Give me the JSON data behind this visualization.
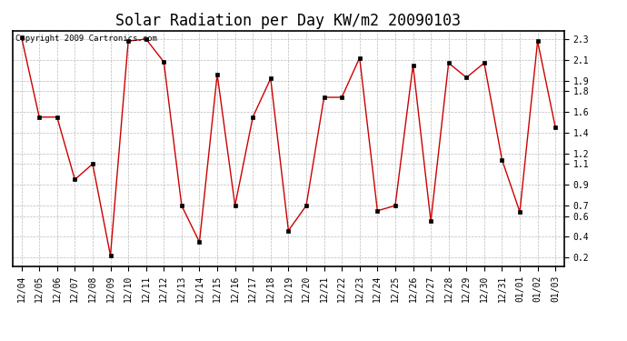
{
  "title": "Solar Radiation per Day KW/m2 20090103",
  "copyright_text": "Copyright 2009 Cartronics.com",
  "x_labels": [
    "12/04",
    "12/05",
    "12/06",
    "12/07",
    "12/08",
    "12/09",
    "12/10",
    "12/11",
    "12/12",
    "12/13",
    "12/14",
    "12/15",
    "12/16",
    "12/17",
    "12/18",
    "12/19",
    "12/20",
    "12/21",
    "12/22",
    "12/23",
    "12/24",
    "12/25",
    "12/26",
    "12/27",
    "12/28",
    "12/29",
    "12/30",
    "12/31",
    "01/01",
    "01/02",
    "01/03"
  ],
  "y_values": [
    2.32,
    1.55,
    1.55,
    0.95,
    1.1,
    0.22,
    2.28,
    2.3,
    2.08,
    0.7,
    0.35,
    1.96,
    0.7,
    1.55,
    1.92,
    0.46,
    0.7,
    1.74,
    1.74,
    2.12,
    0.65,
    0.7,
    2.05,
    0.55,
    2.07,
    1.93,
    2.07,
    1.14,
    0.64,
    2.28,
    1.45
  ],
  "line_color": "#cc0000",
  "marker": "s",
  "marker_size": 2.5,
  "marker_color": "#000000",
  "bg_color": "#ffffff",
  "plot_bg_color": "#ffffff",
  "grid_color": "#bbbbbb",
  "ylim": [
    0.12,
    2.38
  ],
  "ytick_vals": [
    0.2,
    0.4,
    0.6,
    0.7,
    0.9,
    1.1,
    1.2,
    1.4,
    1.6,
    1.8,
    1.9,
    2.1,
    2.3
  ],
  "ytick_labels": [
    "0.2",
    "0.4",
    "0.6",
    "0.7",
    "0.9",
    "1.1",
    "1.2",
    "1.4",
    "1.6",
    "1.8",
    "1.9",
    "2.1",
    "2.3"
  ],
  "title_fontsize": 12,
  "tick_fontsize": 7,
  "copyright_fontsize": 6.5
}
